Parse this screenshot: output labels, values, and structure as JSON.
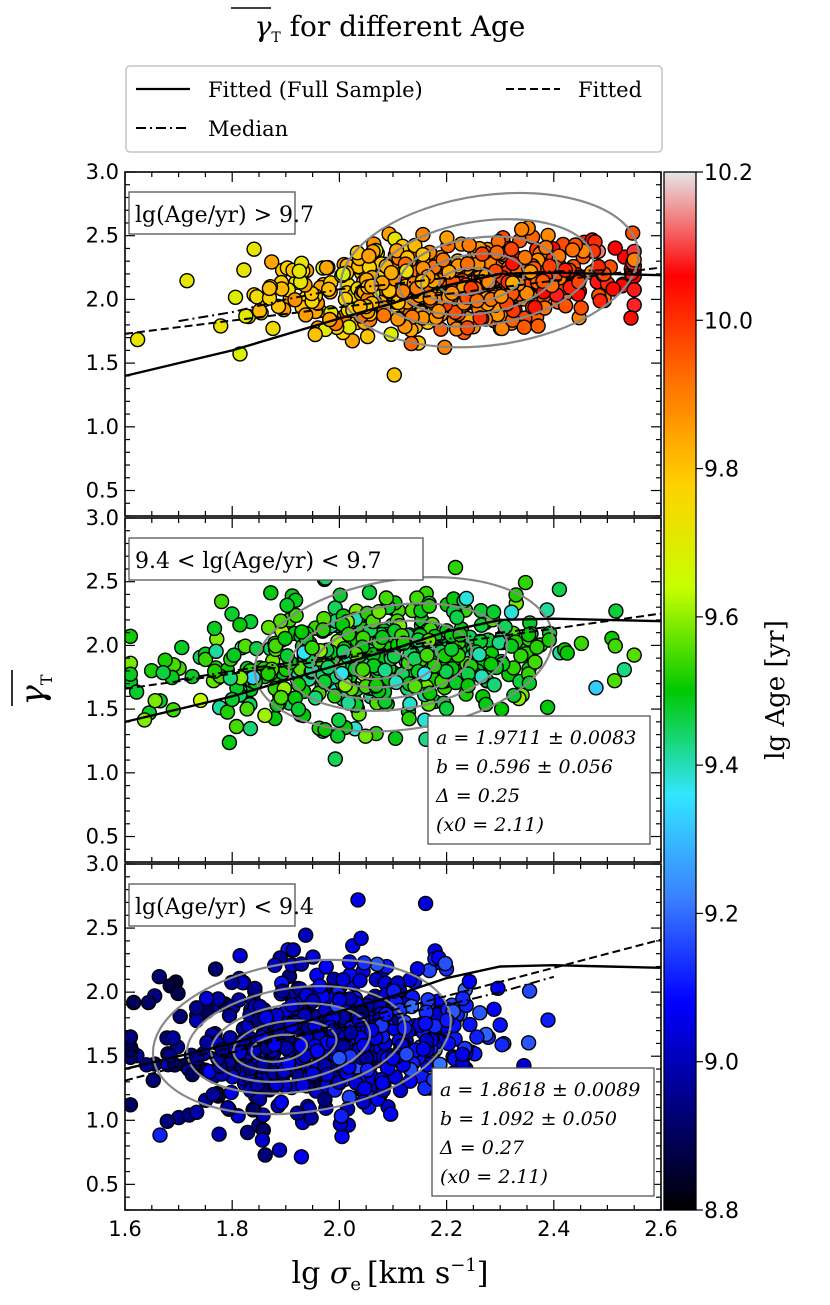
{
  "chart_data": {
    "type": "scatter",
    "title": "γ_T for different Age",
    "title_parts": {
      "symbol": "γ",
      "subscript": "T",
      "text": " for different Age"
    },
    "xlabel": "lg σe [km s⁻¹]",
    "xlabel_parts": {
      "prefix": "lg ",
      "symbol": "σ",
      "subscript": "e",
      "unit": "[km s",
      "unit_exp": "−1",
      "unit_end": "]"
    },
    "ylabel": "γ_T",
    "ylabel_parts": {
      "symbol": "γ",
      "subscript": "T"
    },
    "xlim": [
      1.6,
      2.6
    ],
    "ylim": [
      0.3,
      3.0
    ],
    "x_ticks": [
      "1.6",
      "1.8",
      "2.0",
      "2.2",
      "2.4",
      "2.6"
    ],
    "y_ticks": [
      "0.5",
      "1.0",
      "1.5",
      "2.0",
      "2.5",
      "3.0"
    ],
    "legend": {
      "placement": "top",
      "entries": [
        {
          "label": "Fitted (Full Sample)",
          "style": "solid"
        },
        {
          "label": "Fitted",
          "style": "dashed"
        },
        {
          "label": "Median",
          "style": "dashdot"
        }
      ]
    },
    "colorbar": {
      "label": "lg Age [yr]",
      "range": [
        8.8,
        10.2
      ],
      "ticks": [
        "8.8",
        "9.0",
        "9.2",
        "9.4",
        "9.6",
        "9.8",
        "10.0",
        "10.2"
      ],
      "colormap": "jet"
    },
    "full_sample_fit": {
      "x": [
        1.6,
        1.8,
        2.0,
        2.1,
        2.2,
        2.3,
        2.4,
        2.5,
        2.6
      ],
      "y": [
        1.4,
        1.6,
        1.85,
        1.97,
        2.11,
        2.2,
        2.21,
        2.2,
        2.19
      ]
    },
    "panels": [
      {
        "label": "lg(Age/yr) > 9.7",
        "age_center": 9.9,
        "fitted": {
          "x": [
            1.6,
            2.6
          ],
          "y": [
            1.73,
            2.25
          ]
        },
        "median": {
          "x": [
            1.7,
            1.8,
            1.9,
            2.0,
            2.1,
            2.2,
            2.3,
            2.4,
            2.5
          ],
          "y": [
            1.83,
            1.9,
            2.0,
            2.08,
            2.12,
            2.17,
            2.2,
            2.22,
            2.23
          ]
        },
        "contour_center": [
          2.28,
          2.23
        ],
        "fit_box": null
      },
      {
        "label": "9.4 < lg(Age/yr) < 9.7",
        "age_center": 9.6,
        "fitted": {
          "x": [
            1.6,
            2.6
          ],
          "y": [
            1.66,
            2.25
          ]
        },
        "median": {
          "x": [
            1.7,
            1.8,
            1.9,
            2.0,
            2.1,
            2.2,
            2.3,
            2.4
          ],
          "y": [
            1.73,
            1.8,
            1.86,
            1.91,
            1.98,
            2.05,
            2.1,
            2.15
          ]
        },
        "contour_center": [
          2.12,
          1.93
        ],
        "fit_box": {
          "a": "a = 1.9711 ± 0.0083",
          "b": "b = 0.596 ± 0.056",
          "delta": "Δ = 0.25",
          "x0": "(x0 = 2.11)"
        }
      },
      {
        "label": "lg(Age/yr) < 9.4",
        "age_center": 9.1,
        "fitted": {
          "x": [
            1.6,
            2.6
          ],
          "y": [
            1.31,
            2.41
          ]
        },
        "median": {
          "x": [
            1.7,
            1.8,
            1.9,
            2.0,
            2.1,
            2.2,
            2.3,
            2.4
          ],
          "y": [
            1.47,
            1.57,
            1.64,
            1.72,
            1.82,
            1.9,
            2.0,
            2.12
          ]
        },
        "contour_center": [
          1.93,
          1.65
        ],
        "fit_box": {
          "a": "a = 1.8618 ± 0.0089",
          "b": "b = 1.092 ± 0.050",
          "delta": "Δ = 0.27",
          "x0": "(x0 = 2.11)"
        }
      }
    ]
  }
}
